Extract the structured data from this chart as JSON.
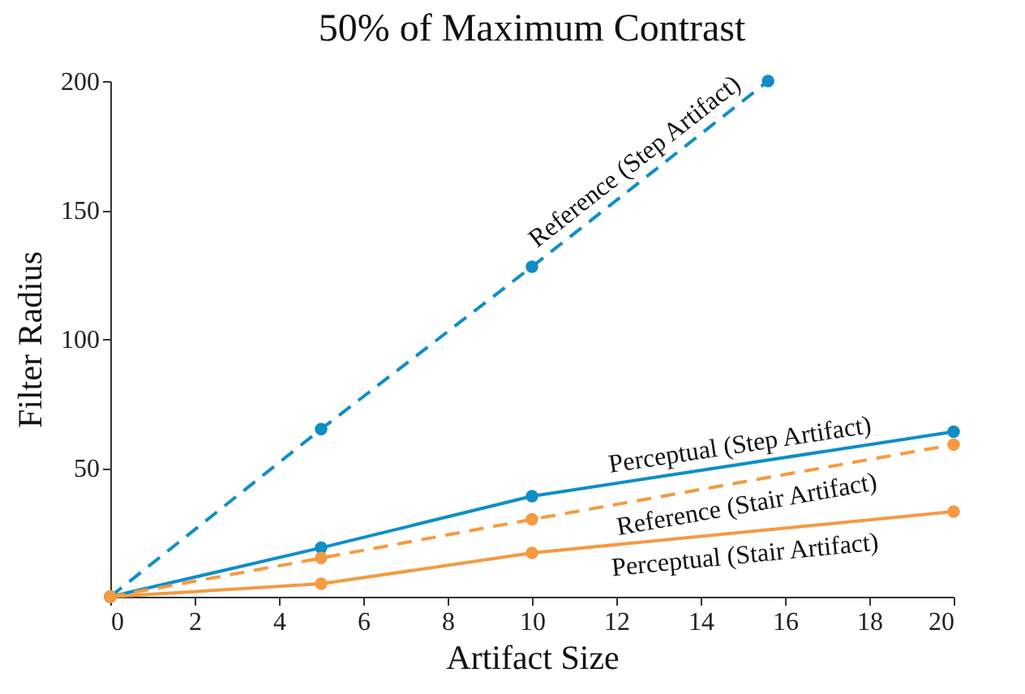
{
  "chart_data": {
    "type": "line",
    "title": "50% of Maximum Contrast",
    "xlabel": "Artifact Size",
    "ylabel": "Filter Radius",
    "xlim": [
      0,
      20
    ],
    "xticks": [
      0,
      2,
      4,
      6,
      8,
      10,
      12,
      14,
      16,
      18,
      20
    ],
    "ylim": [
      0,
      200
    ],
    "yticks": [
      50,
      100,
      150,
      200
    ],
    "grid": false,
    "legend": false,
    "marker": "circle",
    "series": [
      {
        "name": "Reference (Step Artifact)",
        "color": "#0e8ec7",
        "line_style": "dashed",
        "x": [
          0,
          5,
          10,
          15.6
        ],
        "values": [
          0,
          65,
          128,
          200
        ]
      },
      {
        "name": "Perceptual (Step Artifact)",
        "color": "#0e8ec7",
        "line_style": "solid",
        "x": [
          0,
          5,
          10,
          20
        ],
        "values": [
          0,
          19,
          39,
          64
        ]
      },
      {
        "name": "Reference (Stair Artifact)",
        "color": "#f59a40",
        "line_style": "dashed",
        "x": [
          0,
          5,
          10,
          20
        ],
        "values": [
          0,
          15,
          30,
          59
        ]
      },
      {
        "name": "Perceptual (Stair Artifact)",
        "color": "#f59a40",
        "line_style": "solid",
        "x": [
          0,
          5,
          10,
          20
        ],
        "values": [
          0,
          5,
          17,
          33
        ]
      }
    ]
  }
}
